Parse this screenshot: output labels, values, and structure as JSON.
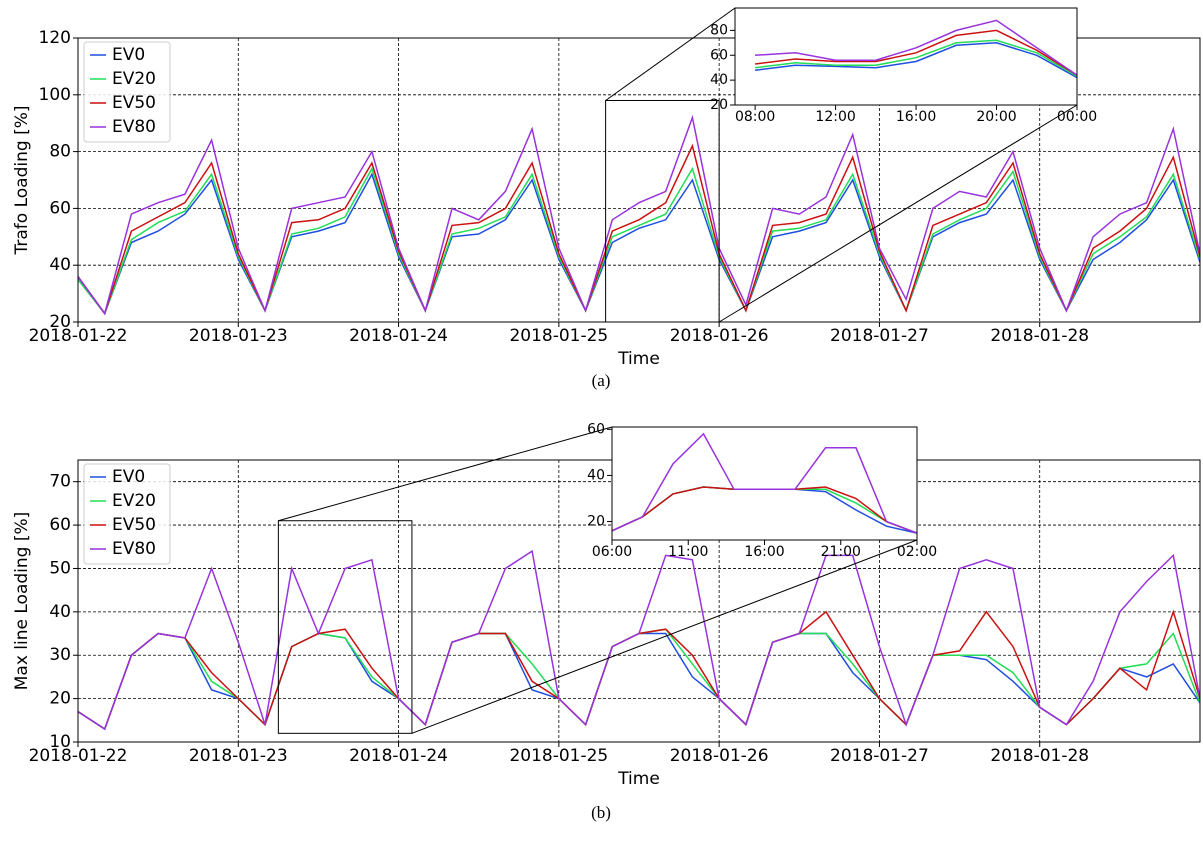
{
  "chart_data": [
    {
      "type": "line",
      "caption": "(a)",
      "x_label": "Time",
      "y_label": "Trafo Loading [%]",
      "legend": "upper left",
      "grid": true,
      "xlim": [
        "2018-01-22 00:00",
        "2018-01-29 00:00"
      ],
      "xticks": [
        "2018-01-22",
        "2018-01-23",
        "2018-01-24",
        "2018-01-25",
        "2018-01-26",
        "2018-01-27",
        "2018-01-28"
      ],
      "ylim": [
        20,
        120
      ],
      "yticks": [
        20,
        40,
        60,
        80,
        100,
        120
      ],
      "x": [
        "2018-01-22 00:00",
        "2018-01-22 04:00",
        "2018-01-22 08:00",
        "2018-01-22 12:00",
        "2018-01-22 16:00",
        "2018-01-22 20:00",
        "2018-01-23 00:00",
        "2018-01-23 04:00",
        "2018-01-23 08:00",
        "2018-01-23 12:00",
        "2018-01-23 16:00",
        "2018-01-23 20:00",
        "2018-01-24 00:00",
        "2018-01-24 04:00",
        "2018-01-24 08:00",
        "2018-01-24 12:00",
        "2018-01-24 16:00",
        "2018-01-24 20:00",
        "2018-01-25 00:00",
        "2018-01-25 04:00",
        "2018-01-25 08:00",
        "2018-01-25 12:00",
        "2018-01-25 16:00",
        "2018-01-25 20:00",
        "2018-01-26 00:00",
        "2018-01-26 04:00",
        "2018-01-26 08:00",
        "2018-01-26 12:00",
        "2018-01-26 16:00",
        "2018-01-26 20:00",
        "2018-01-27 00:00",
        "2018-01-27 04:00",
        "2018-01-27 08:00",
        "2018-01-27 12:00",
        "2018-01-27 16:00",
        "2018-01-27 20:00",
        "2018-01-28 00:00",
        "2018-01-28 04:00",
        "2018-01-28 08:00",
        "2018-01-28 12:00",
        "2018-01-28 16:00",
        "2018-01-28 20:00",
        "2018-01-29 00:00"
      ],
      "series": [
        {
          "name": "EV0",
          "color": "#1f4fe0",
          "values": [
            35,
            23,
            48,
            52,
            58,
            70,
            42,
            24,
            50,
            52,
            55,
            72,
            43,
            24,
            50,
            51,
            56,
            70,
            42,
            24,
            48,
            53,
            56,
            70,
            42,
            24,
            50,
            52,
            55,
            70,
            43,
            24,
            50,
            55,
            58,
            70,
            42,
            24,
            42,
            48,
            56,
            70,
            41
          ]
        },
        {
          "name": "EV20",
          "color": "#22dd55",
          "values": [
            35,
            23,
            49,
            55,
            59,
            72,
            43,
            24,
            51,
            53,
            57,
            74,
            44,
            24,
            51,
            53,
            57,
            72,
            43,
            24,
            50,
            54,
            58,
            74,
            43,
            24,
            52,
            53,
            56,
            72,
            44,
            24,
            51,
            56,
            60,
            73,
            43,
            24,
            44,
            50,
            57,
            72,
            42
          ]
        },
        {
          "name": "EV50",
          "color": "#cc1111",
          "values": [
            36,
            23,
            52,
            57,
            62,
            76,
            44,
            24,
            55,
            56,
            60,
            76,
            45,
            24,
            54,
            55,
            60,
            76,
            44,
            24,
            52,
            56,
            62,
            82,
            44,
            24,
            54,
            55,
            58,
            78,
            45,
            24,
            54,
            58,
            62,
            76,
            44,
            24,
            46,
            52,
            60,
            78,
            43
          ]
        },
        {
          "name": "EV80",
          "color": "#9933dd",
          "values": [
            36,
            23,
            58,
            62,
            65,
            84,
            46,
            24,
            60,
            62,
            64,
            80,
            46,
            24,
            60,
            56,
            66,
            88,
            46,
            24,
            56,
            62,
            66,
            92,
            46,
            26,
            60,
            58,
            64,
            86,
            46,
            28,
            60,
            66,
            64,
            80,
            46,
            24,
            50,
            58,
            62,
            88,
            44
          ]
        }
      ]
    },
    {
      "type": "line",
      "xlim": [
        "2018-01-25 07:00",
        "2018-01-26 00:00"
      ],
      "xticks": [
        {
          "value": "2018-01-25 08:00",
          "label": "08:00"
        },
        {
          "value": "2018-01-25 12:00",
          "label": "12:00"
        },
        {
          "value": "2018-01-25 16:00",
          "label": "16:00"
        },
        {
          "value": "2018-01-25 20:00",
          "label": "20:00"
        },
        {
          "value": "2018-01-26 00:00",
          "label": "00:00"
        }
      ],
      "ylim": [
        20,
        98
      ],
      "yticks": [
        20,
        40,
        60,
        80
      ],
      "x": [
        "2018-01-25 08:00",
        "2018-01-25 10:00",
        "2018-01-25 12:00",
        "2018-01-25 14:00",
        "2018-01-25 16:00",
        "2018-01-25 18:00",
        "2018-01-25 20:00",
        "2018-01-25 22:00",
        "2018-01-26 00:00"
      ],
      "series": [
        {
          "color": "#1f4fe0",
          "values": [
            48,
            52,
            51,
            50,
            55,
            68,
            70,
            60,
            42
          ]
        },
        {
          "color": "#22dd55",
          "values": [
            50,
            54,
            52,
            52,
            58,
            70,
            72,
            62,
            43
          ]
        },
        {
          "color": "#cc1111",
          "values": [
            53,
            57,
            55,
            55,
            62,
            76,
            80,
            64,
            44
          ]
        },
        {
          "color": "#9933dd",
          "values": [
            60,
            62,
            56,
            56,
            66,
            80,
            88,
            66,
            44
          ]
        }
      ]
    },
    {
      "type": "line",
      "caption": "(b)",
      "x_label": "Time",
      "y_label": "Max line Loading [%]",
      "legend": "upper left",
      "grid": true,
      "xlim": [
        "2018-01-22 00:00",
        "2018-01-29 00:00"
      ],
      "xticks": [
        "2018-01-22",
        "2018-01-23",
        "2018-01-24",
        "2018-01-25",
        "2018-01-26",
        "2018-01-27",
        "2018-01-28"
      ],
      "ylim": [
        10,
        75
      ],
      "yticks": [
        10,
        20,
        30,
        40,
        50,
        60,
        70
      ],
      "x": [
        "2018-01-22 00:00",
        "2018-01-22 04:00",
        "2018-01-22 08:00",
        "2018-01-22 12:00",
        "2018-01-22 16:00",
        "2018-01-22 20:00",
        "2018-01-23 00:00",
        "2018-01-23 04:00",
        "2018-01-23 08:00",
        "2018-01-23 12:00",
        "2018-01-23 16:00",
        "2018-01-23 20:00",
        "2018-01-24 00:00",
        "2018-01-24 04:00",
        "2018-01-24 08:00",
        "2018-01-24 12:00",
        "2018-01-24 16:00",
        "2018-01-24 20:00",
        "2018-01-25 00:00",
        "2018-01-25 04:00",
        "2018-01-25 08:00",
        "2018-01-25 12:00",
        "2018-01-25 16:00",
        "2018-01-25 20:00",
        "2018-01-26 00:00",
        "2018-01-26 04:00",
        "2018-01-26 08:00",
        "2018-01-26 12:00",
        "2018-01-26 16:00",
        "2018-01-26 20:00",
        "2018-01-27 00:00",
        "2018-01-27 04:00",
        "2018-01-27 08:00",
        "2018-01-27 12:00",
        "2018-01-27 16:00",
        "2018-01-27 20:00",
        "2018-01-28 00:00",
        "2018-01-28 04:00",
        "2018-01-28 08:00",
        "2018-01-28 12:00",
        "2018-01-28 16:00",
        "2018-01-28 20:00",
        "2018-01-29 00:00"
      ],
      "series": [
        {
          "name": "EV0",
          "color": "#1f4fe0",
          "values": [
            17,
            13,
            30,
            35,
            34,
            22,
            20,
            14,
            32,
            35,
            34,
            24,
            20,
            14,
            33,
            35,
            35,
            22,
            20,
            14,
            32,
            35,
            35,
            25,
            20,
            14,
            33,
            35,
            35,
            26,
            20,
            14,
            30,
            30,
            29,
            24,
            18,
            14,
            20,
            27,
            25,
            28,
            19
          ]
        },
        {
          "name": "EV20",
          "color": "#22dd55",
          "values": [
            17,
            13,
            30,
            35,
            34,
            24,
            20,
            14,
            32,
            35,
            34,
            25,
            20,
            14,
            33,
            35,
            35,
            28,
            20,
            14,
            32,
            35,
            36,
            28,
            20,
            14,
            33,
            35,
            35,
            28,
            20,
            14,
            30,
            30,
            30,
            26,
            18,
            14,
            20,
            27,
            28,
            35,
            19
          ]
        },
        {
          "name": "EV50",
          "color": "#cc1111",
          "values": [
            17,
            13,
            30,
            35,
            34,
            26,
            20,
            14,
            32,
            35,
            36,
            27,
            20,
            14,
            33,
            35,
            35,
            24,
            20,
            14,
            32,
            35,
            36,
            30,
            20,
            14,
            33,
            35,
            40,
            30,
            20,
            14,
            30,
            31,
            40,
            32,
            18,
            14,
            20,
            27,
            22,
            40,
            20
          ]
        },
        {
          "name": "EV80",
          "color": "#9933dd",
          "values": [
            17,
            13,
            30,
            35,
            34,
            50,
            33,
            14,
            50,
            35,
            50,
            52,
            20,
            14,
            33,
            35,
            50,
            54,
            20,
            14,
            32,
            35,
            53,
            52,
            20,
            14,
            33,
            35,
            53,
            53,
            32,
            14,
            30,
            50,
            52,
            50,
            18,
            14,
            24,
            40,
            47,
            53,
            20
          ]
        }
      ]
    },
    {
      "type": "line",
      "xlim": [
        "2018-01-23 06:00",
        "2018-01-24 02:00"
      ],
      "xticks": [
        {
          "value": "2018-01-23 06:00",
          "label": "06:00"
        },
        {
          "value": "2018-01-23 11:00",
          "label": "11:00"
        },
        {
          "value": "2018-01-23 16:00",
          "label": "16:00"
        },
        {
          "value": "2018-01-23 21:00",
          "label": "21:00"
        },
        {
          "value": "2018-01-24 02:00",
          "label": "02:00"
        }
      ],
      "ylim": [
        12,
        61
      ],
      "yticks": [
        20,
        40,
        60
      ],
      "x": [
        "2018-01-23 06:00",
        "2018-01-23 08:00",
        "2018-01-23 10:00",
        "2018-01-23 12:00",
        "2018-01-23 14:00",
        "2018-01-23 16:00",
        "2018-01-23 18:00",
        "2018-01-23 20:00",
        "2018-01-23 22:00",
        "2018-01-24 00:00",
        "2018-01-24 02:00"
      ],
      "series": [
        {
          "color": "#1f4fe0",
          "values": [
            16,
            22,
            32,
            35,
            34,
            34,
            34,
            33,
            25,
            18,
            15
          ]
        },
        {
          "color": "#22dd55",
          "values": [
            16,
            22,
            32,
            35,
            34,
            34,
            34,
            34,
            28,
            20,
            15
          ]
        },
        {
          "color": "#cc1111",
          "values": [
            16,
            22,
            32,
            35,
            34,
            34,
            34,
            35,
            30,
            20,
            15
          ]
        },
        {
          "color": "#9933dd",
          "values": [
            16,
            22,
            45,
            58,
            34,
            34,
            34,
            52,
            52,
            20,
            15
          ]
        }
      ]
    }
  ]
}
